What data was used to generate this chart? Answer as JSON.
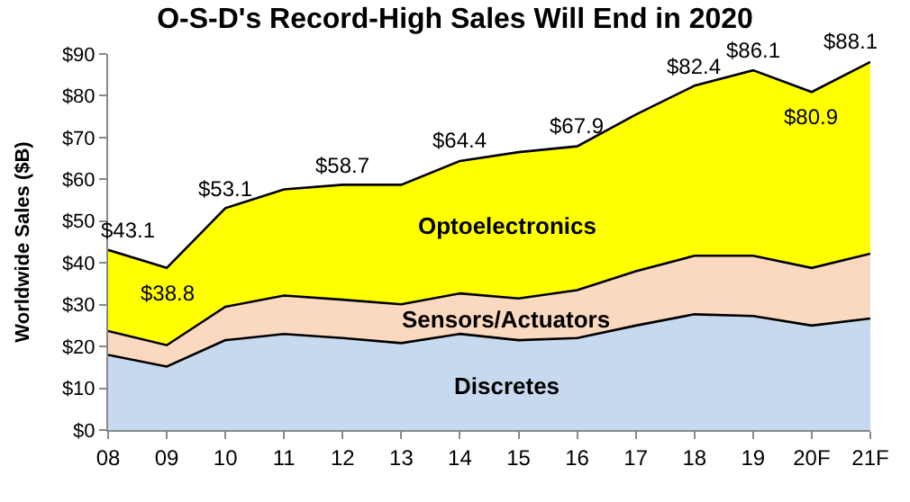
{
  "chart_data": {
    "type": "area",
    "stacked": true,
    "title": "O-S-D's Record-High Sales Will End in 2020",
    "ylabel": "Worldwide Sales ($B)",
    "categories": [
      "08",
      "09",
      "10",
      "11",
      "12",
      "13",
      "14",
      "15",
      "16",
      "17",
      "18",
      "19",
      "20F",
      "21F"
    ],
    "series": [
      {
        "name": "Discretes",
        "color": "#c6d9ee",
        "values": [
          18,
          15.2,
          21.5,
          23,
          22,
          20.8,
          23,
          21.5,
          22,
          25,
          27.7,
          27.3,
          25,
          26.7
        ]
      },
      {
        "name": "Sensors/Actuators",
        "color": "#fbd9c0",
        "values": [
          5.7,
          5.1,
          8,
          9.2,
          9.2,
          9.3,
          9.7,
          10,
          11.5,
          13,
          14,
          14.4,
          13.8,
          15.5
        ]
      },
      {
        "name": "Optoelectronics",
        "color": "#ffff00",
        "values": [
          19.4,
          18.5,
          23.6,
          25.4,
          27.5,
          28.6,
          31.7,
          35,
          34.4,
          37.5,
          40.7,
          44.4,
          42.1,
          45.9
        ]
      }
    ],
    "totals": [
      "$43.1",
      "$38.8",
      "$53.1",
      null,
      "$58.7",
      null,
      "$64.4",
      null,
      "$67.9",
      null,
      "$82.4",
      "$86.1",
      "$80.9",
      "$88.1"
    ],
    "ylim": [
      0,
      90
    ],
    "yticks": [
      {
        "value": 0,
        "label": "$0"
      },
      {
        "value": 10,
        "label": "$10"
      },
      {
        "value": 20,
        "label": "$20"
      },
      {
        "value": 30,
        "label": "$30"
      },
      {
        "value": 40,
        "label": "$40"
      },
      {
        "value": 50,
        "label": "$50"
      },
      {
        "value": 60,
        "label": "$60"
      },
      {
        "value": 70,
        "label": "$70"
      },
      {
        "value": 80,
        "label": "$80"
      },
      {
        "value": 90,
        "label": "$90"
      }
    ],
    "legend": false
  }
}
